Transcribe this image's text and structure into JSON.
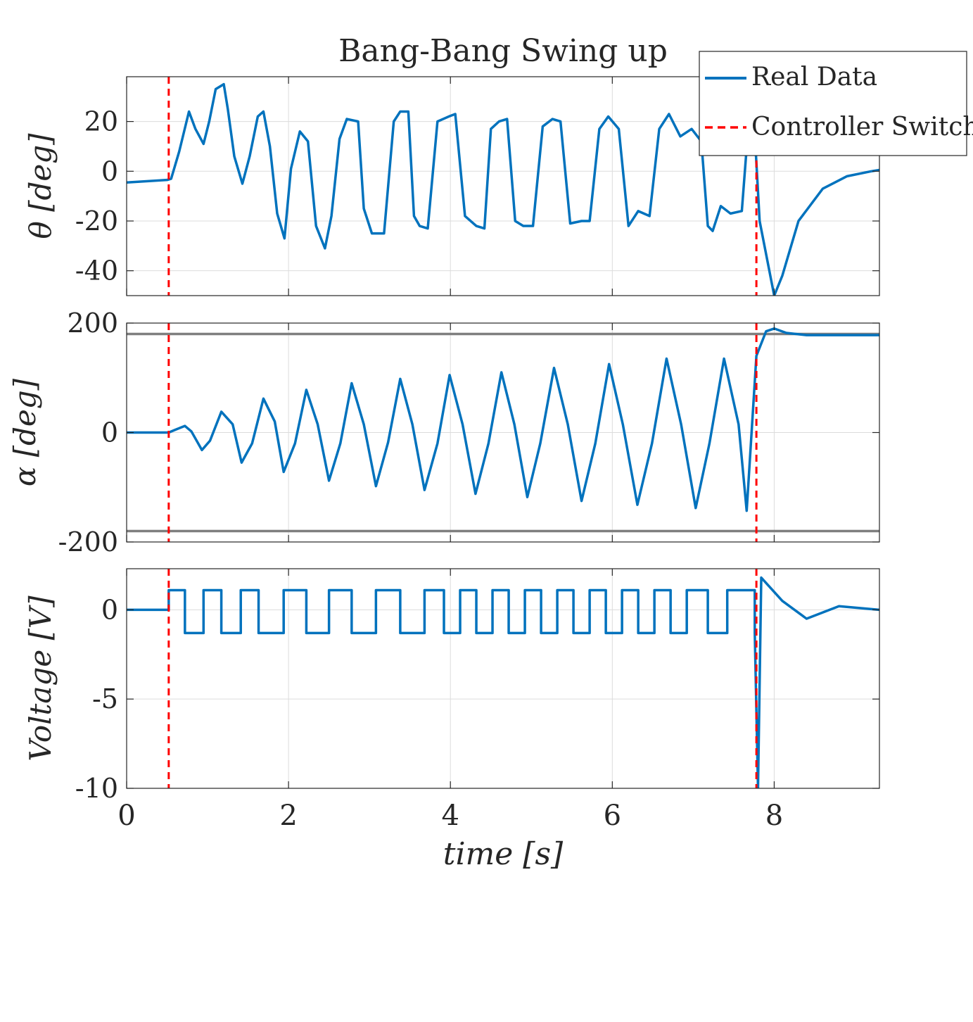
{
  "chart_data": {
    "type": "line",
    "title": "Bang-Bang Swing up",
    "xlabel": "time [s]",
    "xlim": [
      0,
      9.3
    ],
    "xticks": [
      0,
      2,
      4,
      6,
      8
    ],
    "controller_switch_times": [
      0.52,
      7.78
    ],
    "legend": {
      "position": "top-right",
      "entries": [
        "Real Data",
        "Controller Switch"
      ]
    },
    "colors": {
      "data": "#0072bd",
      "switch": "#ff0000",
      "limit": "#7f7f7f"
    },
    "panels": [
      {
        "ylabel": "θ [deg]",
        "ylim": [
          -50,
          38
        ],
        "yticks": [
          20,
          0,
          -20,
          -40
        ],
        "ytick_labels": [
          "20",
          "0",
          "-20",
          "-40"
        ],
        "series": {
          "name": "Real Data",
          "x": [
            0,
            0.5,
            0.55,
            0.65,
            0.77,
            0.85,
            0.95,
            1.02,
            1.1,
            1.2,
            1.25,
            1.33,
            1.43,
            1.52,
            1.62,
            1.69,
            1.77,
            1.86,
            1.95,
            2.03,
            2.14,
            2.24,
            2.34,
            2.45,
            2.53,
            2.63,
            2.72,
            2.86,
            2.93,
            3.03,
            3.18,
            3.3,
            3.38,
            3.48,
            3.55,
            3.62,
            3.72,
            3.84,
            3.98,
            4.06,
            4.18,
            4.32,
            4.42,
            4.5,
            4.6,
            4.7,
            4.8,
            4.9,
            5.02,
            5.14,
            5.26,
            5.36,
            5.48,
            5.62,
            5.72,
            5.84,
            5.95,
            6.08,
            6.2,
            6.32,
            6.46,
            6.58,
            6.7,
            6.84,
            6.98,
            7.1,
            7.18,
            7.24,
            7.34,
            7.46,
            7.6,
            7.68,
            7.76,
            7.82,
            8.0,
            8.1,
            8.3,
            8.6,
            8.9,
            9.2,
            9.3
          ],
          "y": [
            -4.5,
            -3.5,
            -3,
            8,
            24,
            17,
            11,
            20,
            33,
            35,
            25,
            6,
            -5,
            6,
            22,
            24,
            10,
            -17,
            -27,
            1,
            16,
            12,
            -22,
            -31,
            -18,
            13,
            21,
            20,
            -15,
            -25,
            -25,
            20,
            24,
            24,
            -18,
            -22,
            -23,
            20,
            22,
            23,
            -18,
            -22,
            -23,
            17,
            20,
            21,
            -20,
            -22,
            -22,
            18,
            21,
            20,
            -21,
            -20,
            -20,
            17,
            22,
            17,
            -22,
            -16,
            -18,
            17,
            23,
            14,
            17,
            12,
            -22,
            -24,
            -14,
            -17,
            -16,
            18,
            15,
            -20,
            -50,
            -42,
            -20,
            -7,
            -2,
            0,
            0.5
          ]
        }
      },
      {
        "ylabel": "α [deg]",
        "ylim": [
          -200,
          200
        ],
        "yticks": [
          200,
          0,
          -200
        ],
        "ytick_labels": [
          "200",
          "0",
          "-200"
        ],
        "limit_lines": [
          180,
          -180
        ],
        "series": {
          "name": "Real Data",
          "x": [
            0,
            0.52,
            0.6,
            0.72,
            0.8,
            0.93,
            1.03,
            1.17,
            1.31,
            1.42,
            1.55,
            1.69,
            1.83,
            1.94,
            2.08,
            2.22,
            2.36,
            2.5,
            2.64,
            2.78,
            2.93,
            3.08,
            3.23,
            3.38,
            3.53,
            3.68,
            3.84,
            3.99,
            4.15,
            4.31,
            4.47,
            4.63,
            4.79,
            4.95,
            5.11,
            5.28,
            5.45,
            5.62,
            5.79,
            5.96,
            6.13,
            6.31,
            6.49,
            6.67,
            6.85,
            7.03,
            7.2,
            7.38,
            7.56,
            7.66,
            7.78,
            7.9,
            8.0,
            8.15,
            8.4,
            9.3
          ],
          "y": [
            0,
            0,
            5,
            12,
            2,
            -32,
            -15,
            38,
            15,
            -55,
            -20,
            62,
            20,
            -72,
            -20,
            78,
            15,
            -88,
            -20,
            90,
            15,
            -98,
            -18,
            98,
            15,
            -105,
            -20,
            105,
            15,
            -112,
            -20,
            110,
            15,
            -118,
            -20,
            118,
            15,
            -125,
            -20,
            125,
            15,
            -132,
            -20,
            135,
            15,
            -138,
            -20,
            135,
            15,
            -143,
            140,
            185,
            190,
            182,
            178,
            178
          ]
        }
      },
      {
        "ylabel": "Voltage [V]",
        "ylim": [
          -10,
          2.3
        ],
        "yticks": [
          0,
          -5,
          -10
        ],
        "ytick_labels": [
          "0",
          "-5",
          "-10"
        ],
        "series": {
          "name": "Real Data",
          "x": [
            0,
            0.52,
            0.52,
            0.72,
            0.72,
            0.95,
            0.95,
            1.17,
            1.17,
            1.41,
            1.41,
            1.63,
            1.63,
            1.94,
            1.94,
            2.22,
            2.22,
            2.5,
            2.5,
            2.78,
            2.78,
            3.08,
            3.08,
            3.38,
            3.38,
            3.68,
            3.68,
            3.92,
            3.92,
            4.12,
            4.12,
            4.32,
            4.32,
            4.52,
            4.52,
            4.72,
            4.72,
            4.92,
            4.92,
            5.12,
            5.12,
            5.32,
            5.32,
            5.52,
            5.52,
            5.72,
            5.72,
            5.92,
            5.92,
            6.12,
            6.12,
            6.32,
            6.32,
            6.52,
            6.52,
            6.72,
            6.72,
            6.92,
            6.92,
            7.18,
            7.18,
            7.42,
            7.42,
            7.76,
            7.76,
            7.8,
            7.84,
            7.9,
            8.1,
            8.4,
            8.8,
            9.3
          ],
          "y": [
            0,
            0,
            1.1,
            1.1,
            -1.3,
            -1.3,
            1.1,
            1.1,
            -1.3,
            -1.3,
            1.1,
            1.1,
            -1.3,
            -1.3,
            1.1,
            1.1,
            -1.3,
            -1.3,
            1.1,
            1.1,
            -1.3,
            -1.3,
            1.1,
            1.1,
            -1.3,
            -1.3,
            1.1,
            1.1,
            -1.3,
            -1.3,
            1.1,
            1.1,
            -1.3,
            -1.3,
            1.1,
            1.1,
            -1.3,
            -1.3,
            1.1,
            1.1,
            -1.3,
            -1.3,
            1.1,
            1.1,
            -1.3,
            -1.3,
            1.1,
            1.1,
            -1.3,
            -1.3,
            1.1,
            1.1,
            -1.3,
            -1.3,
            1.1,
            1.1,
            -1.3,
            -1.3,
            1.1,
            1.1,
            -1.3,
            -1.3,
            1.1,
            1.1,
            -1.3,
            -10,
            1.8,
            1.5,
            0.5,
            -0.5,
            0.2,
            0
          ]
        }
      }
    ]
  }
}
